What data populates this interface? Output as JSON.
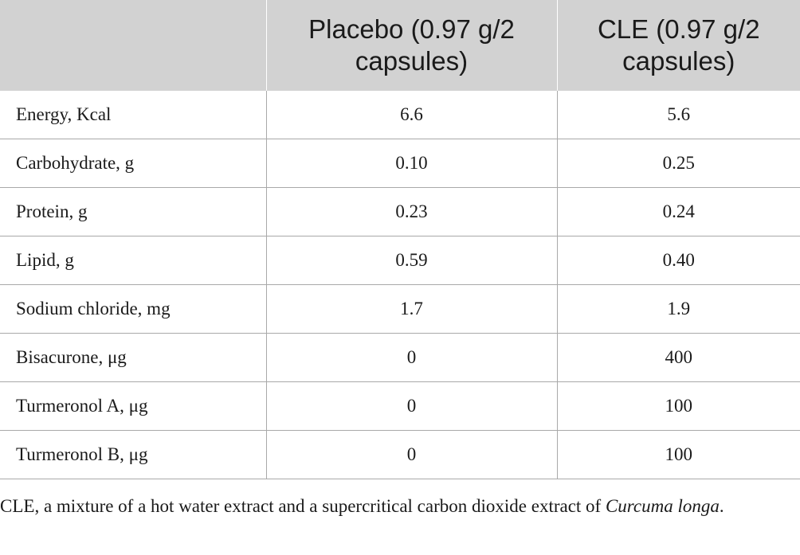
{
  "table": {
    "headers": [
      "",
      "Placebo (0.97 g/2 capsules)",
      "CLE (0.97 g/2 capsules)"
    ],
    "rows": [
      {
        "label": "Energy, Kcal",
        "placebo": "6.6",
        "cle": "5.6"
      },
      {
        "label": "Carbohydrate, g",
        "placebo": "0.10",
        "cle": "0.25"
      },
      {
        "label": "Protein, g",
        "placebo": "0.23",
        "cle": "0.24"
      },
      {
        "label": "Lipid, g",
        "placebo": "0.59",
        "cle": "0.40"
      },
      {
        "label": "Sodium chloride, mg",
        "placebo": "1.7",
        "cle": "1.9"
      },
      {
        "label": "Bisacurone, μg",
        "placebo": "0",
        "cle": "400"
      },
      {
        "label": "Turmeronol A, μg",
        "placebo": "0",
        "cle": "100"
      },
      {
        "label": "Turmeronol B, μg",
        "placebo": "0",
        "cle": "100"
      }
    ],
    "header_fill": "#d2d2d2",
    "rule_color": "#a9a9a9"
  },
  "footnote": {
    "text": "CLE, a mixture of a hot water extract and a supercritical carbon dioxide extract of ",
    "species": "Curcuma longa",
    "end": "."
  }
}
